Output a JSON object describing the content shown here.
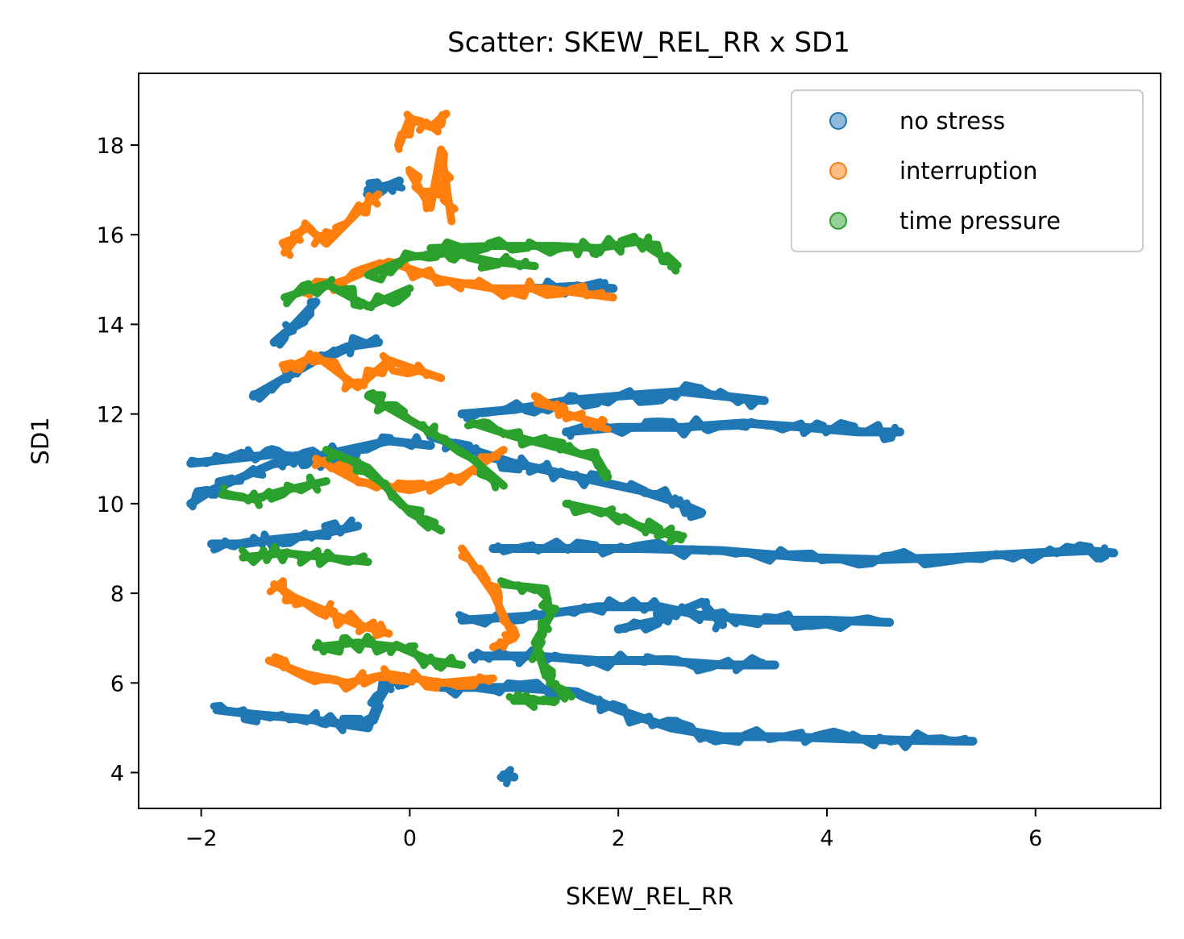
{
  "chart_data": {
    "type": "scatter",
    "title": "Scatter: SKEW_REL_RR x SD1",
    "xlabel": "SKEW_REL_RR",
    "ylabel": "SD1",
    "xlim": [
      -2.6,
      7.2
    ],
    "ylim": [
      3.2,
      19.6
    ],
    "xticks": [
      -2,
      0,
      2,
      4,
      6
    ],
    "yticks": [
      4,
      6,
      8,
      10,
      12,
      14,
      16,
      18
    ],
    "xtick_labels": [
      "−2",
      "0",
      "2",
      "4",
      "6"
    ],
    "ytick_labels": [
      "4",
      "6",
      "8",
      "10",
      "12",
      "14",
      "16",
      "18"
    ],
    "grid": false,
    "legend_position": "top-right",
    "series": [
      {
        "name": "no stress",
        "color": "#1f77b4",
        "paths": [
          [
            [
              -2.1,
              10.0
            ],
            [
              -1.9,
              10.3
            ],
            [
              -1.6,
              10.6
            ],
            [
              -1.3,
              10.9
            ],
            [
              -1.0,
              11.0
            ],
            [
              -0.6,
              11.2
            ],
            [
              -0.2,
              11.4
            ],
            [
              0.2,
              11.3
            ]
          ],
          [
            [
              -2.1,
              10.9
            ],
            [
              -1.7,
              11.0
            ],
            [
              -1.3,
              11.1
            ],
            [
              -0.9,
              11.0
            ],
            [
              -0.5,
              10.9
            ]
          ],
          [
            [
              -1.9,
              9.1
            ],
            [
              -1.6,
              9.1
            ],
            [
              -1.3,
              9.2
            ],
            [
              -0.9,
              9.3
            ],
            [
              -0.5,
              9.5
            ]
          ],
          [
            [
              -1.85,
              5.4
            ],
            [
              -1.5,
              5.3
            ],
            [
              -1.0,
              5.2
            ],
            [
              -0.7,
              5.1
            ],
            [
              -0.4,
              5.0
            ]
          ],
          [
            [
              -0.4,
              5.0
            ],
            [
              -0.3,
              5.6
            ],
            [
              -0.2,
              6.0
            ],
            [
              0.0,
              6.1
            ]
          ],
          [
            [
              0.9,
              3.95
            ],
            [
              1.0,
              3.9
            ]
          ],
          [
            [
              -1.5,
              12.4
            ],
            [
              -1.2,
              12.8
            ],
            [
              -0.9,
              13.2
            ],
            [
              -0.6,
              13.5
            ],
            [
              -0.3,
              13.6
            ]
          ],
          [
            [
              -1.3,
              13.6
            ],
            [
              -1.1,
              14.0
            ],
            [
              -0.9,
              14.5
            ]
          ],
          [
            [
              -0.4,
              17.0
            ],
            [
              -0.2,
              17.1
            ],
            [
              -0.1,
              17.2
            ]
          ],
          [
            [
              0.2,
              11.5
            ],
            [
              0.6,
              11.2
            ],
            [
              1.0,
              10.9
            ],
            [
              1.4,
              10.7
            ],
            [
              1.8,
              10.5
            ],
            [
              2.2,
              10.3
            ],
            [
              2.6,
              10.0
            ],
            [
              2.8,
              9.8
            ]
          ],
          [
            [
              0.5,
              12.0
            ],
            [
              1.0,
              12.1
            ],
            [
              1.5,
              12.3
            ],
            [
              2.0,
              12.4
            ],
            [
              2.6,
              12.5
            ],
            [
              3.0,
              12.4
            ],
            [
              3.4,
              12.3
            ]
          ],
          [
            [
              1.5,
              11.6
            ],
            [
              2.0,
              11.7
            ],
            [
              2.6,
              11.7
            ],
            [
              3.2,
              11.8
            ],
            [
              3.8,
              11.7
            ],
            [
              4.3,
              11.6
            ],
            [
              4.7,
              11.6
            ]
          ],
          [
            [
              0.8,
              9.0
            ],
            [
              1.5,
              9.0
            ],
            [
              2.2,
              9.0
            ],
            [
              3.0,
              8.95
            ],
            [
              3.8,
              8.8
            ],
            [
              4.5,
              8.75
            ],
            [
              5.2,
              8.8
            ],
            [
              6.0,
              8.9
            ],
            [
              6.5,
              8.95
            ],
            [
              6.75,
              8.9
            ]
          ],
          [
            [
              0.5,
              7.4
            ],
            [
              1.2,
              7.5
            ],
            [
              1.8,
              7.7
            ],
            [
              2.4,
              7.7
            ],
            [
              2.8,
              7.5
            ],
            [
              3.4,
              7.4
            ],
            [
              4.0,
              7.4
            ],
            [
              4.6,
              7.35
            ]
          ],
          [
            [
              0.6,
              6.6
            ],
            [
              1.2,
              6.6
            ],
            [
              1.8,
              6.5
            ],
            [
              2.4,
              6.5
            ],
            [
              3.0,
              6.4
            ],
            [
              3.5,
              6.4
            ]
          ],
          [
            [
              0.3,
              5.9
            ],
            [
              1.0,
              5.9
            ],
            [
              1.6,
              5.8
            ],
            [
              2.0,
              5.4
            ],
            [
              2.5,
              5.0
            ],
            [
              3.0,
              4.8
            ],
            [
              3.6,
              4.8
            ],
            [
              4.2,
              4.75
            ],
            [
              4.8,
              4.72
            ],
            [
              5.4,
              4.7
            ]
          ],
          [
            [
              1.2,
              14.8
            ],
            [
              1.6,
              14.85
            ],
            [
              1.95,
              14.8
            ]
          ],
          [
            [
              2.0,
              7.2
            ],
            [
              2.4,
              7.4
            ],
            [
              2.8,
              7.8
            ],
            [
              3.0,
              7.3
            ]
          ]
        ]
      },
      {
        "name": "interruption",
        "color": "#ff7f0e",
        "paths": [
          [
            [
              -1.2,
              15.6
            ],
            [
              -1.0,
              16.2
            ],
            [
              -0.8,
              15.8
            ],
            [
              -0.5,
              16.5
            ],
            [
              -0.3,
              16.9
            ]
          ],
          [
            [
              -0.1,
              18.0
            ],
            [
              0.0,
              18.6
            ],
            [
              0.2,
              18.4
            ],
            [
              0.35,
              18.7
            ]
          ],
          [
            [
              0.0,
              17.4
            ],
            [
              0.2,
              16.6
            ],
            [
              0.3,
              17.9
            ],
            [
              0.4,
              16.3
            ]
          ],
          [
            [
              -1.0,
              14.7
            ],
            [
              -0.6,
              15.0
            ],
            [
              -0.2,
              15.4
            ],
            [
              0.3,
              15.0
            ],
            [
              0.8,
              14.8
            ],
            [
              1.3,
              14.8
            ],
            [
              1.95,
              14.6
            ]
          ],
          [
            [
              -1.2,
              13.0
            ],
            [
              -0.9,
              13.3
            ],
            [
              -0.5,
              12.6
            ],
            [
              -0.2,
              13.2
            ],
            [
              0.3,
              12.8
            ]
          ],
          [
            [
              -1.3,
              8.2
            ],
            [
              -1.1,
              7.9
            ],
            [
              -0.8,
              7.6
            ],
            [
              -0.5,
              7.3
            ],
            [
              -0.2,
              7.1
            ]
          ],
          [
            [
              -1.35,
              6.5
            ],
            [
              -1.0,
              6.2
            ],
            [
              -0.6,
              6.0
            ],
            [
              -0.2,
              6.2
            ],
            [
              0.3,
              6.0
            ],
            [
              0.8,
              6.1
            ]
          ],
          [
            [
              0.5,
              9.0
            ],
            [
              0.8,
              8.0
            ],
            [
              1.0,
              7.0
            ],
            [
              0.8,
              6.8
            ]
          ],
          [
            [
              1.2,
              12.4
            ],
            [
              1.5,
              12.0
            ],
            [
              1.8,
              11.8
            ],
            [
              1.85,
              11.7
            ]
          ],
          [
            [
              -0.9,
              11.0
            ],
            [
              -0.5,
              10.5
            ],
            [
              0.0,
              10.3
            ],
            [
              0.5,
              10.6
            ],
            [
              0.9,
              11.2
            ]
          ]
        ]
      },
      {
        "name": "time pressure",
        "color": "#2ca02c",
        "paths": [
          [
            [
              -0.4,
              15.1
            ],
            [
              0.0,
              15.5
            ],
            [
              0.4,
              15.6
            ],
            [
              0.8,
              15.4
            ],
            [
              1.2,
              15.3
            ]
          ],
          [
            [
              0.2,
              15.7
            ],
            [
              0.8,
              15.75
            ],
            [
              1.4,
              15.75
            ],
            [
              1.8,
              15.7
            ],
            [
              2.2,
              15.85
            ],
            [
              2.5,
              15.4
            ],
            [
              2.55,
              15.2
            ]
          ],
          [
            [
              -1.2,
              14.6
            ],
            [
              -0.8,
              14.9
            ],
            [
              -0.4,
              14.4
            ],
            [
              0.0,
              14.8
            ]
          ],
          [
            [
              -1.6,
              8.8
            ],
            [
              -1.2,
              8.9
            ],
            [
              -0.8,
              8.8
            ],
            [
              -0.4,
              8.7
            ]
          ],
          [
            [
              -1.8,
              10.2
            ],
            [
              -1.5,
              10.1
            ],
            [
              -1.2,
              10.3
            ],
            [
              -0.8,
              10.5
            ]
          ],
          [
            [
              -0.9,
              6.8
            ],
            [
              -0.5,
              6.9
            ],
            [
              -0.1,
              6.8
            ],
            [
              0.2,
              6.5
            ],
            [
              0.5,
              6.4
            ]
          ],
          [
            [
              0.9,
              8.2
            ],
            [
              1.3,
              8.1
            ],
            [
              1.35,
              7.5
            ],
            [
              1.2,
              6.9
            ],
            [
              1.3,
              6.2
            ],
            [
              1.4,
              5.9
            ],
            [
              1.55,
              5.7
            ]
          ],
          [
            [
              0.6,
              11.8
            ],
            [
              1.0,
              11.5
            ],
            [
              1.5,
              11.2
            ],
            [
              1.8,
              11.0
            ],
            [
              1.9,
              10.6
            ]
          ],
          [
            [
              1.5,
              10.0
            ],
            [
              1.9,
              9.8
            ],
            [
              2.2,
              9.5
            ],
            [
              2.5,
              9.3
            ],
            [
              2.6,
              9.2
            ]
          ],
          [
            [
              1.0,
              5.6
            ],
            [
              1.2,
              5.6
            ],
            [
              1.4,
              5.6
            ]
          ],
          [
            [
              -0.4,
              12.4
            ],
            [
              -0.1,
              12.0
            ],
            [
              0.2,
              11.6
            ],
            [
              0.6,
              11.0
            ],
            [
              0.9,
              10.4
            ]
          ],
          [
            [
              -0.8,
              11.2
            ],
            [
              -0.4,
              10.8
            ],
            [
              0.0,
              9.8
            ],
            [
              0.3,
              9.4
            ]
          ]
        ]
      }
    ]
  }
}
